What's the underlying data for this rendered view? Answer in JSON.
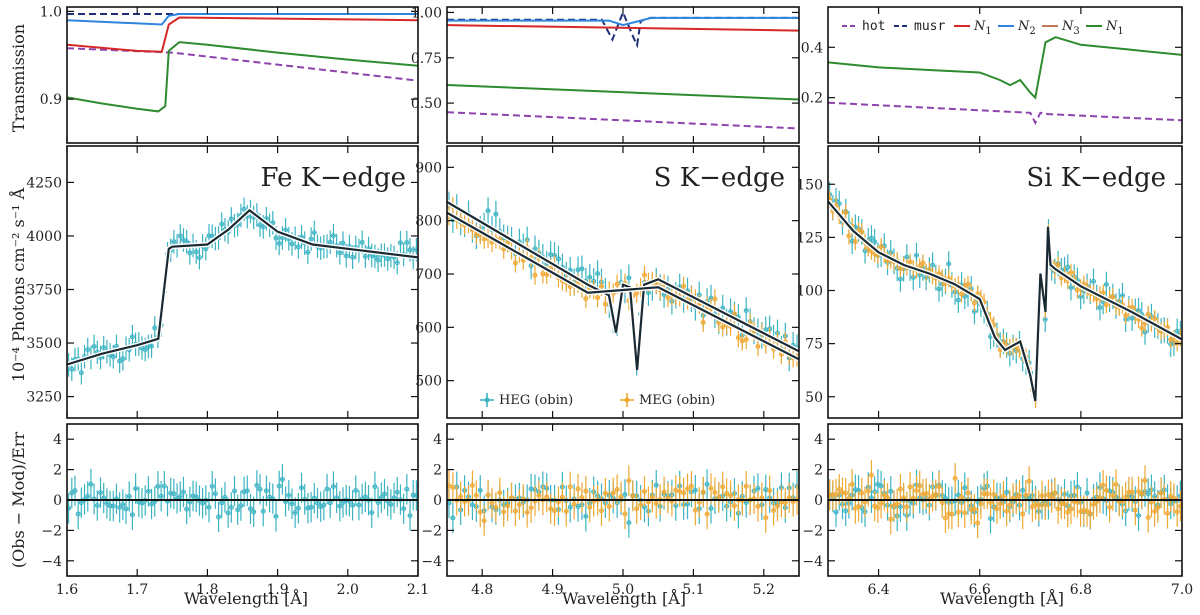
{
  "figure": {
    "ylabel_trans": "Transmission",
    "ylabel_flux": "10⁻⁴ Photons cm⁻² s⁻¹ Å",
    "ylabel_resid": "(Obs − Mod)/Err",
    "xlabel": "Wavelength [Å]"
  },
  "legend_top": {
    "entries": [
      {
        "label": "hot",
        "color": "#8e44ad",
        "style": "dashed",
        "mono": true
      },
      {
        "label": "musr",
        "color": "#1f2f7a",
        "style": "dashed",
        "mono": true
      },
      {
        "label": "N",
        "sub": "1",
        "color": "#d62728",
        "style": "solid",
        "mono": false
      },
      {
        "label": "N",
        "sub": "2",
        "color": "#2e86de",
        "style": "solid",
        "mono": false
      },
      {
        "label": "N",
        "sub": "3",
        "color": "#c47a5a",
        "style": "solid",
        "mono": false
      },
      {
        "label": "N",
        "sub": "1",
        "color": "#2e8b2e",
        "style": "solid",
        "mono": false
      }
    ]
  },
  "legend_mid": {
    "entries": [
      {
        "label": "HEG (obin)",
        "color": "#3bb3c3"
      },
      {
        "label": "MEG (obin)",
        "color": "#f0a830"
      }
    ]
  },
  "chart_data": [
    {
      "type": "line",
      "panel": "Fe transmission",
      "xlim": [
        1.6,
        2.1
      ],
      "ylim": [
        0.85,
        1.005
      ],
      "yticks": [
        0.9,
        1.0
      ],
      "yticklabels": [
        "0.9",
        "1.0"
      ],
      "series": [
        {
          "color": "#1f2f7a",
          "dash": true,
          "x": [
            1.6,
            2.1
          ],
          "y": [
            0.997,
            0.997
          ]
        },
        {
          "color": "#8e44ad",
          "dash": true,
          "x": [
            1.6,
            1.75,
            2.1
          ],
          "y": [
            0.958,
            0.953,
            0.921
          ]
        },
        {
          "color": "#d62728",
          "dash": false,
          "x": [
            1.6,
            1.7,
            1.735,
            1.745,
            1.76,
            2.1
          ],
          "y": [
            0.962,
            0.955,
            0.954,
            0.985,
            0.993,
            0.99
          ]
        },
        {
          "color": "#2e86de",
          "dash": false,
          "x": [
            1.6,
            1.735,
            1.745,
            1.76,
            2.1
          ],
          "y": [
            0.99,
            0.985,
            0.995,
            0.997,
            0.997
          ]
        },
        {
          "color": "#2e8b2e",
          "dash": false,
          "x": [
            1.6,
            1.65,
            1.7,
            1.73,
            1.74,
            1.745,
            1.76,
            1.8,
            1.9,
            2.0,
            2.1
          ],
          "y": [
            0.902,
            0.895,
            0.889,
            0.886,
            0.892,
            0.955,
            0.965,
            0.962,
            0.953,
            0.945,
            0.938
          ]
        }
      ]
    },
    {
      "type": "line",
      "panel": "S transmission",
      "xlim": [
        4.75,
        5.25
      ],
      "ylim": [
        0.28,
        1.03
      ],
      "yticks": [
        0.5,
        0.75,
        1.0
      ],
      "yticklabels": [
        "0.50",
        "0.75",
        "1.00"
      ],
      "series": [
        {
          "color": "#1f2f7a",
          "dash": true,
          "x": [
            4.75,
            4.97,
            4.985,
            5.0,
            5.015,
            5.02,
            5.025,
            5.035,
            5.25
          ],
          "y": [
            0.96,
            0.96,
            0.85,
            1.0,
            0.86,
            0.82,
            0.95,
            0.97,
            0.97
          ]
        },
        {
          "color": "#2e86de",
          "dash": false,
          "x": [
            4.75,
            4.98,
            5.0,
            5.02,
            5.04,
            5.25
          ],
          "y": [
            0.955,
            0.955,
            0.93,
            0.95,
            0.97,
            0.97
          ]
        },
        {
          "color": "#d62728",
          "dash": false,
          "x": [
            4.75,
            5.25
          ],
          "y": [
            0.93,
            0.9
          ]
        },
        {
          "color": "#2e8b2e",
          "dash": false,
          "x": [
            4.75,
            5.25
          ],
          "y": [
            0.6,
            0.52
          ]
        },
        {
          "color": "#8e44ad",
          "dash": true,
          "x": [
            4.75,
            5.25
          ],
          "y": [
            0.45,
            0.36
          ]
        }
      ]
    },
    {
      "type": "line",
      "panel": "Si transmission",
      "xlim": [
        6.3,
        7.0
      ],
      "ylim": [
        0.02,
        0.56
      ],
      "yticks": [
        0.2,
        0.4
      ],
      "yticklabels": [
        "0.2",
        "0.4"
      ],
      "series": [
        {
          "color": "#2e8b2e",
          "dash": false,
          "x": [
            6.3,
            6.4,
            6.5,
            6.6,
            6.64,
            6.66,
            6.68,
            6.7,
            6.71,
            6.73,
            6.75,
            6.8,
            6.9,
            7.0
          ],
          "y": [
            0.34,
            0.32,
            0.31,
            0.3,
            0.27,
            0.25,
            0.27,
            0.22,
            0.2,
            0.42,
            0.44,
            0.41,
            0.39,
            0.37
          ]
        },
        {
          "color": "#8e44ad",
          "dash": true,
          "x": [
            6.3,
            6.6,
            6.7,
            6.71,
            6.72,
            6.73,
            7.0
          ],
          "y": [
            0.18,
            0.15,
            0.14,
            0.1,
            0.14,
            0.135,
            0.11
          ]
        }
      ]
    },
    {
      "type": "scatter",
      "panel": "Fe K-edge flux",
      "annotation": "Fe K−edge",
      "xlim": [
        1.6,
        2.1
      ],
      "ylim": [
        3150,
        4420
      ],
      "yticks": [
        3250,
        3500,
        3750,
        4000,
        4250
      ],
      "yticklabels": [
        "3250",
        "3500",
        "3750",
        "4000",
        "4250"
      ],
      "model": {
        "x": [
          1.6,
          1.65,
          1.7,
          1.73,
          1.745,
          1.75,
          1.8,
          1.83,
          1.86,
          1.9,
          1.95,
          2.0,
          2.1
        ],
        "y": [
          3400,
          3450,
          3490,
          3520,
          3940,
          3950,
          3960,
          4030,
          4120,
          4020,
          3960,
          3940,
          3900
        ]
      },
      "series": [
        {
          "name": "HEG (obin)",
          "color": "#3bb3c3",
          "x0": 1.6,
          "x1": 2.1,
          "n": 110,
          "scatter": 55,
          "err": 55
        }
      ]
    },
    {
      "type": "scatter",
      "panel": "S K-edge flux",
      "annotation": "S K−edge",
      "xlim": [
        4.75,
        5.25
      ],
      "ylim": [
        430,
        940
      ],
      "yticks": [
        500,
        600,
        700,
        800,
        900
      ],
      "yticklabels": [
        "500",
        "600",
        "700",
        "800",
        "900"
      ],
      "model": {
        "x": [
          4.75,
          4.95,
          4.98,
          4.99,
          5.0,
          5.01,
          5.02,
          5.03,
          5.05,
          5.25
        ],
        "y": [
          835,
          680,
          660,
          590,
          680,
          675,
          520,
          680,
          690,
          555
        ]
      },
      "model2": {
        "x": [
          4.75,
          4.95,
          5.05,
          5.25
        ],
        "y": [
          815,
          665,
          675,
          540
        ]
      },
      "series": [
        {
          "name": "HEG (obin)",
          "color": "#3bb3c3",
          "x0": 4.75,
          "x1": 5.25,
          "n": 90,
          "scatter": 30,
          "err": 25
        },
        {
          "name": "MEG (obin)",
          "color": "#f0a830",
          "x0": 4.75,
          "x1": 5.25,
          "n": 90,
          "scatter": 22,
          "err": 18
        }
      ]
    },
    {
      "type": "scatter",
      "panel": "Si K-edge flux",
      "annotation": "Si K−edge",
      "xlim": [
        6.3,
        7.0
      ],
      "ylim": [
        40,
        168
      ],
      "yticks": [
        50,
        75,
        100,
        125,
        150
      ],
      "yticklabels": [
        "50",
        "75",
        "100",
        "125",
        "150"
      ],
      "model": {
        "x": [
          6.3,
          6.35,
          6.4,
          6.45,
          6.5,
          6.55,
          6.6,
          6.63,
          6.65,
          6.68,
          6.7,
          6.71,
          6.72,
          6.73,
          6.735,
          6.74,
          6.75,
          6.8,
          6.9,
          7.0
        ],
        "y": [
          142,
          128,
          118,
          112,
          108,
          103,
          96,
          78,
          72,
          76,
          60,
          48,
          108,
          90,
          130,
          112,
          110,
          102,
          90,
          77
        ]
      },
      "series": [
        {
          "name": "HEG (obin)",
          "color": "#3bb3c3",
          "x0": 6.3,
          "x1": 7.0,
          "n": 110,
          "scatter": 6,
          "err": 6
        },
        {
          "name": "MEG (obin)",
          "color": "#f0a830",
          "x0": 6.3,
          "x1": 7.0,
          "n": 110,
          "scatter": 4,
          "err": 4
        }
      ]
    },
    {
      "type": "scatter",
      "panel": "Fe residuals",
      "xlim": [
        1.6,
        2.1
      ],
      "ylim": [
        -5,
        5
      ],
      "yticks": [
        -4,
        -2,
        0,
        2,
        4
      ],
      "yticklabels": [
        "−4",
        "−2",
        "0",
        "2",
        "4"
      ],
      "xticks": [
        1.6,
        1.7,
        1.8,
        1.9,
        2.0,
        2.1
      ],
      "xticklabels": [
        "1.6",
        "1.7",
        "1.8",
        "1.9",
        "2.0",
        "2.1"
      ],
      "series": [
        {
          "name": "HEG (obin)",
          "color": "#3bb3c3",
          "x0": 1.6,
          "x1": 2.1,
          "n": 110,
          "scatter": 1.0,
          "err": 1
        }
      ]
    },
    {
      "type": "scatter",
      "panel": "S residuals",
      "xlim": [
        4.75,
        5.25
      ],
      "ylim": [
        -5,
        5
      ],
      "yticks": [
        -4,
        -2,
        0,
        2,
        4
      ],
      "yticklabels": [
        "−4",
        "−2",
        "0",
        "2",
        "4"
      ],
      "xticks": [
        4.8,
        4.9,
        5.0,
        5.1,
        5.2
      ],
      "xticklabels": [
        "4.8",
        "4.9",
        "5.0",
        "5.1",
        "5.2"
      ],
      "series": [
        {
          "name": "HEG (obin)",
          "color": "#3bb3c3",
          "x0": 4.75,
          "x1": 5.25,
          "n": 90,
          "scatter": 1.0,
          "err": 1
        },
        {
          "name": "MEG (obin)",
          "color": "#f0a830",
          "x0": 4.75,
          "x1": 5.25,
          "n": 90,
          "scatter": 1.0,
          "err": 1
        }
      ]
    },
    {
      "type": "scatter",
      "panel": "Si residuals",
      "xlim": [
        6.3,
        7.0
      ],
      "ylim": [
        -5,
        5
      ],
      "yticks": [
        -4,
        -2,
        0,
        2,
        4
      ],
      "yticklabels": [
        "−4",
        "−2",
        "0",
        "2",
        "4"
      ],
      "xticks": [
        6.4,
        6.6,
        6.8,
        7.0
      ],
      "xticklabels": [
        "6.4",
        "6.6",
        "6.8",
        "7.0"
      ],
      "series": [
        {
          "name": "HEG (obin)",
          "color": "#3bb3c3",
          "x0": 6.3,
          "x1": 7.0,
          "n": 110,
          "scatter": 1.0,
          "err": 1
        },
        {
          "name": "MEG (obin)",
          "color": "#f0a830",
          "x0": 6.3,
          "x1": 7.0,
          "n": 110,
          "scatter": 1.2,
          "err": 1
        }
      ]
    }
  ]
}
